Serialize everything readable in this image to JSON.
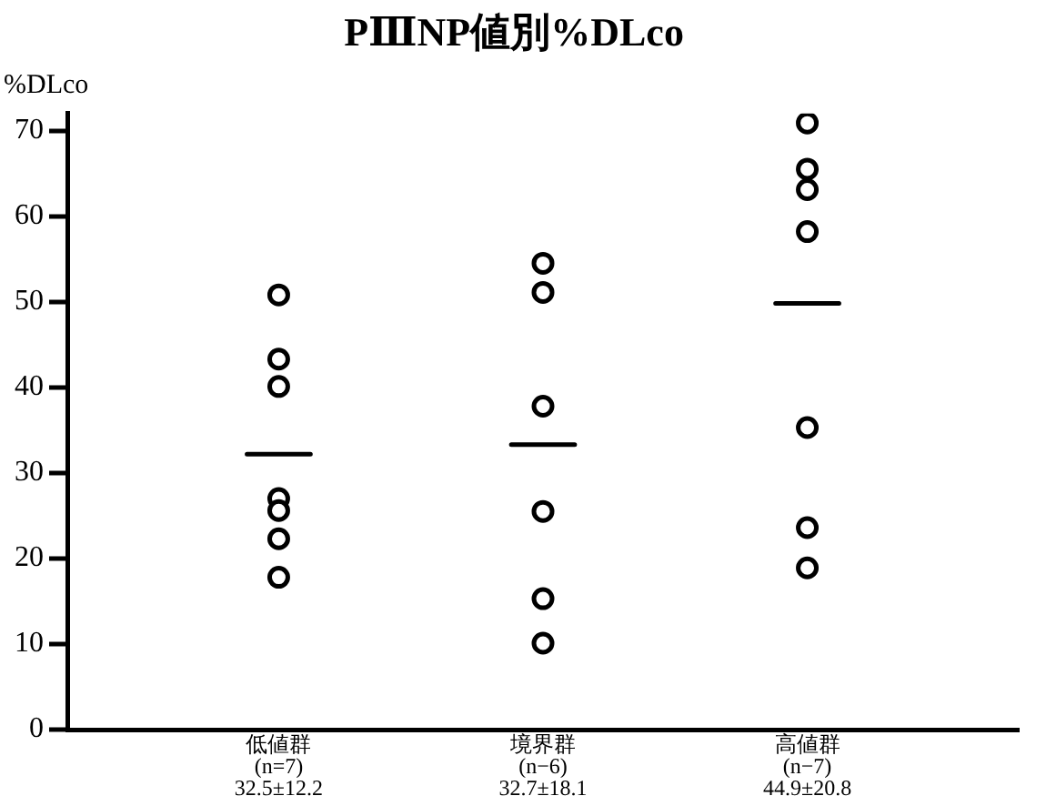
{
  "chart_data": {
    "type": "scatter",
    "title": "PⅢNP値別%DLco",
    "ylabel": "%DLco",
    "categories": [
      "低値群\n(n=7)\n32.5±12.2",
      "境界群\n(n−6)\n32.7±18.1",
      "高値群\n(n−7)\n44.9±20.8"
    ],
    "series": [
      {
        "type": "scatter",
        "marker": "circle",
        "color": "#000000",
        "x": [
          "低値群\n(n=7)\n32.5±12.2",
          "低値群\n(n=7)\n32.5±12.2",
          "低値群\n(n=7)\n32.5±12.2",
          "低値群\n(n=7)\n32.5±12.2",
          "低値群\n(n=7)\n32.5±12.2",
          "低値群\n(n=7)\n32.5±12.2",
          "低値群\n(n=7)\n32.5±12.2",
          "境界群\n(n−6)\n32.7±18.1",
          "境界群\n(n−6)\n32.7±18.1",
          "境界群\n(n−6)\n32.7±18.1",
          "境界群\n(n−6)\n32.7±18.1",
          "境界群\n(n−6)\n32.7±18.1",
          "境界群\n(n−6)\n32.7±18.1",
          "高値群\n(n−7)\n44.9±20.8",
          "高値群\n(n−7)\n44.9±20.8",
          "高値群\n(n−7)\n44.9±20.8",
          "高値群\n(n−7)\n44.9±20.8",
          "高値群\n(n−7)\n44.9±20.8",
          "高値群\n(n−7)\n44.9±20.8",
          "高値群\n(n−7)\n44.9±20.8"
        ],
        "values": [
          50.8,
          43.3,
          40.1,
          27,
          25.6,
          22.3,
          17.8,
          54.5,
          51.1,
          37.8,
          25.5,
          15.3,
          10.1,
          70.9,
          65.5,
          63.1,
          58.2,
          35.3,
          23.6,
          18.9
        ]
      },
      {
        "type": "box",
        "color": "#000000",
        "boxes": [
          {
            "low": 32.2,
            "q1": 32.2,
            "median": 32.2,
            "q3": 32.2,
            "high": 32.2
          },
          {
            "low": 33.3,
            "q1": 33.3,
            "median": 33.3,
            "q3": 33.3,
            "high": 33.3
          },
          {
            "low": 49.8,
            "q1": 49.8,
            "median": 49.8,
            "q3": 49.8,
            "high": 49.8
          }
        ]
      }
    ],
    "ylim": [
      0,
      72
    ],
    "yticks": [
      0,
      10,
      20,
      30,
      40,
      50,
      60,
      70
    ],
    "grid": false,
    "legend": false
  }
}
